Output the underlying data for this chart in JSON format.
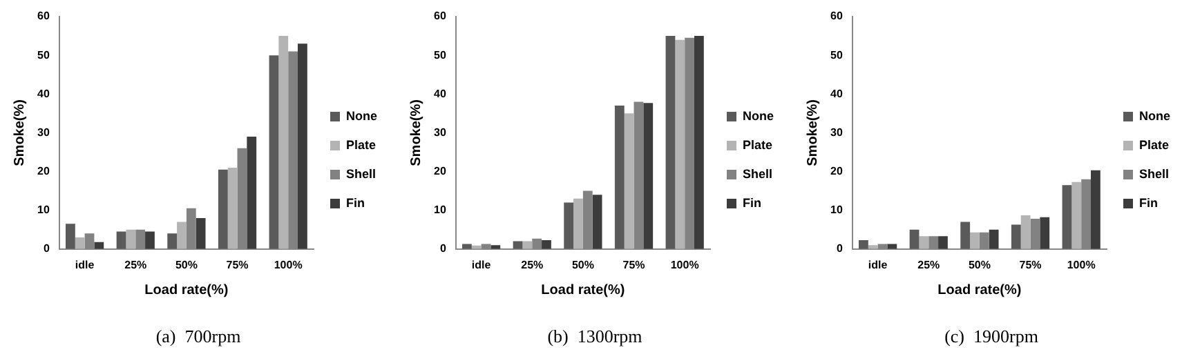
{
  "chart_data": [
    {
      "type": "bar",
      "title": "(a)  700rpm",
      "xlabel": "Load rate(%)",
      "ylabel": "Smoke(%)",
      "categories": [
        "idle",
        "25%",
        "50%",
        "75%",
        "100%"
      ],
      "series": [
        {
          "name": "None",
          "color": "#5a5a5a",
          "values": [
            6.5,
            4.5,
            4,
            20.5,
            50
          ]
        },
        {
          "name": "Plate",
          "color": "#b4b4b4",
          "values": [
            3,
            5,
            7,
            21,
            55
          ]
        },
        {
          "name": "Shell",
          "color": "#828282",
          "values": [
            4,
            5,
            10.5,
            26,
            51
          ]
        },
        {
          "name": "Fin",
          "color": "#3c3c3c",
          "values": [
            1.8,
            4.5,
            8,
            29,
            53
          ]
        }
      ],
      "ylim": [
        0,
        60
      ],
      "yticks": [
        0,
        10,
        20,
        30,
        40,
        50,
        60
      ],
      "grid": false,
      "legend": "right"
    },
    {
      "type": "bar",
      "title": "(b)  1300rpm",
      "xlabel": "Load rate(%)",
      "ylabel": "Smoke(%)",
      "categories": [
        "idle",
        "25%",
        "50%",
        "75%",
        "100%"
      ],
      "series": [
        {
          "name": "None",
          "color": "#5a5a5a",
          "values": [
            1.3,
            2,
            12,
            37,
            55
          ]
        },
        {
          "name": "Plate",
          "color": "#b4b4b4",
          "values": [
            0.9,
            2,
            13,
            35,
            54
          ]
        },
        {
          "name": "Shell",
          "color": "#828282",
          "values": [
            1.3,
            2.7,
            15,
            38,
            54.5
          ]
        },
        {
          "name": "Fin",
          "color": "#3c3c3c",
          "values": [
            1,
            2.3,
            14,
            37.7,
            55
          ]
        }
      ],
      "ylim": [
        0,
        60
      ],
      "yticks": [
        0,
        10,
        20,
        30,
        40,
        50,
        60
      ],
      "grid": false,
      "legend": "right"
    },
    {
      "type": "bar",
      "title": "(c)  1900rpm",
      "xlabel": "Load rate(%)",
      "ylabel": "Smoke(%)",
      "categories": [
        "idle",
        "25%",
        "50%",
        "75%",
        "100%"
      ],
      "series": [
        {
          "name": "None",
          "color": "#5a5a5a",
          "values": [
            2.3,
            5,
            7,
            6.3,
            16.5
          ]
        },
        {
          "name": "Plate",
          "color": "#b4b4b4",
          "values": [
            1,
            3.3,
            4.3,
            8.7,
            17.3
          ]
        },
        {
          "name": "Shell",
          "color": "#828282",
          "values": [
            1.3,
            3.3,
            4.3,
            7.8,
            18
          ]
        },
        {
          "name": "Fin",
          "color": "#3c3c3c",
          "values": [
            1.3,
            3.3,
            5,
            8.2,
            20.3
          ]
        }
      ],
      "ylim": [
        0,
        60
      ],
      "yticks": [
        0,
        10,
        20,
        30,
        40,
        50,
        60
      ],
      "grid": false,
      "legend": "right"
    }
  ]
}
